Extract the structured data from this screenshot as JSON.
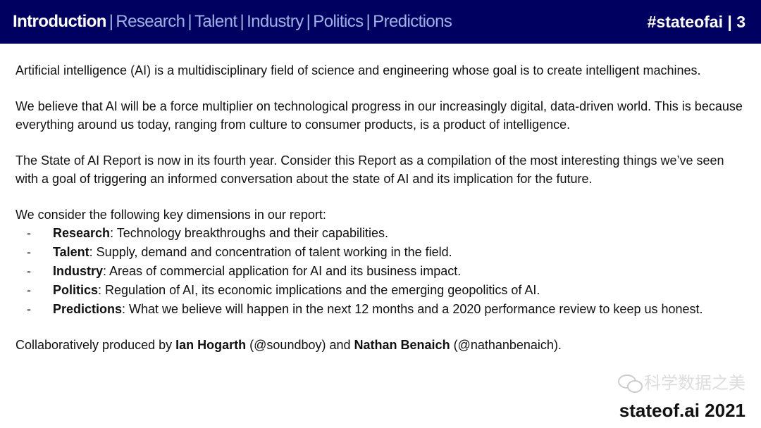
{
  "header": {
    "tabs": [
      {
        "label": "Introduction",
        "active": true
      },
      {
        "label": "Research",
        "active": false
      },
      {
        "label": "Talent",
        "active": false
      },
      {
        "label": "Industry",
        "active": false
      },
      {
        "label": "Politics",
        "active": false
      },
      {
        "label": "Predictions",
        "active": false
      }
    ],
    "separator": "|",
    "tag": "#stateofai | 3",
    "background": "#000060"
  },
  "body": {
    "p1": "Artificial intelligence (AI) is a multidisciplinary field of science and engineering whose goal is to create intelligent machines.",
    "p2": "We believe that AI will be a force multiplier on technological progress in our increasingly digital, data-driven world. This is because everything around us today, ranging from culture to consumer products, is a product of intelligence.",
    "p3": "The State of AI Report is now in its fourth year. Consider this Report as a compilation of the most interesting things we’ve seen with a goal of triggering an informed conversation about the state of AI and its implication for the future.",
    "list_intro": "We consider the following key dimensions in our report:",
    "dash": "-",
    "items": [
      {
        "term": "Research",
        "desc": ": Technology breakthroughs and their capabilities."
      },
      {
        "term": "Talent",
        "desc": ": Supply, demand and concentration of talent working in the field."
      },
      {
        "term": "Industry",
        "desc": ": Areas of commercial application for AI and its business impact."
      },
      {
        "term": "Politics",
        "desc": ": Regulation of AI, its economic implications and the emerging geopolitics of AI."
      },
      {
        "term": "Predictions",
        "desc": ": What we believe will happen in the next 12 months and a 2020 performance review to keep us honest."
      }
    ],
    "credits": {
      "prefix": "Collaboratively produced by ",
      "author1": "Ian Hogarth",
      "handle1": " (@soundboy) and ",
      "author2": "Nathan Benaich",
      "handle2": " (@nathanbenaich)."
    }
  },
  "watermark": "科学数据之美",
  "footer": "stateof.ai 2021"
}
